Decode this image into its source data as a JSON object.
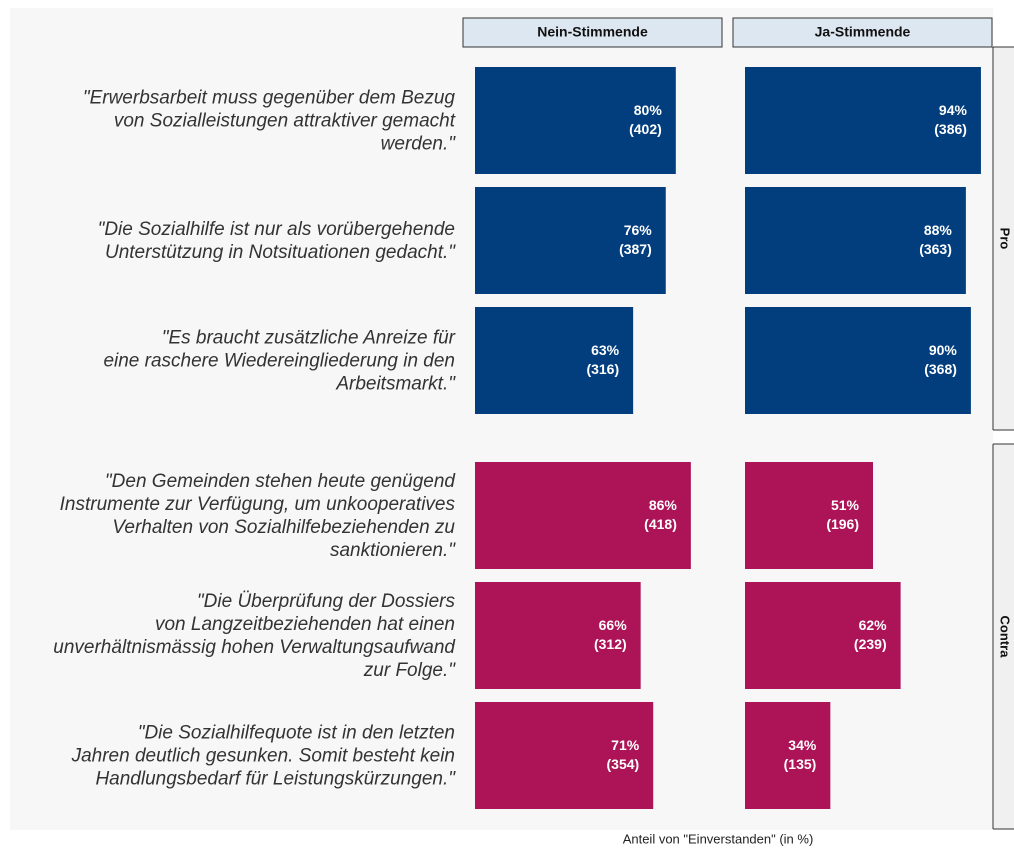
{
  "chart_data": {
    "type": "bar",
    "x_label": "Anteil von \"Einverstanden\" (in %)",
    "xlim": [
      0,
      100
    ],
    "groups": [
      {
        "name": "Pro",
        "color": "#023e7d",
        "categories": [
          "\"Erwerbsarbeit muss gegenüber dem Bezug\nvon Sozialleistungen attraktiver gemacht\nwerden.\"",
          "\"Die Sozialhilfe ist nur als vorübergehende\nUnterstützung in Notsituationen gedacht.\"",
          "\"Es braucht zusätzliche Anreize für\neine raschere Wiedereingliederung in den\nArbeitsmarkt.\""
        ]
      },
      {
        "name": "Contra",
        "color": "#ad1457",
        "categories": [
          "\"Den Gemeinden stehen heute genügend\nInstrumente zur Verfügung, um unkooperatives\nVerhalten von Sozialhilfebeziehenden zu\nsanktionieren.\"",
          "\"Die Überprüfung der Dossiers\nvon Langzeitbeziehenden hat einen\nunverhältnismässig hohen Verwaltungsaufwand\nzur Folge.\"",
          "\"Die Sozialhilfequote ist in den letzten\nJahren deutlich gesunken. Somit besteht kein\nHandlungsbedarf für Leistungskürzungen.\""
        ]
      }
    ],
    "series": [
      {
        "name": "Nein-Stimmende",
        "values": [
          80,
          76,
          63,
          86,
          66,
          71
        ],
        "value_labels": [
          "80%",
          "76%",
          "63%",
          "86%",
          "66%",
          "71%"
        ],
        "counts": [
          402,
          387,
          316,
          418,
          312,
          354
        ],
        "count_labels": [
          "(402)",
          "(387)",
          "(316)",
          "(418)",
          "(312)",
          "(354)"
        ]
      },
      {
        "name": "Ja-Stimmende",
        "values": [
          94,
          88,
          90,
          51,
          62,
          34
        ],
        "value_labels": [
          "94%",
          "88%",
          "90%",
          "51%",
          "62%",
          "34%"
        ],
        "counts": [
          386,
          363,
          368,
          196,
          239,
          135
        ],
        "count_labels": [
          "(386)",
          "(363)",
          "(368)",
          "(196)",
          "(239)",
          "(135)"
        ]
      }
    ]
  }
}
